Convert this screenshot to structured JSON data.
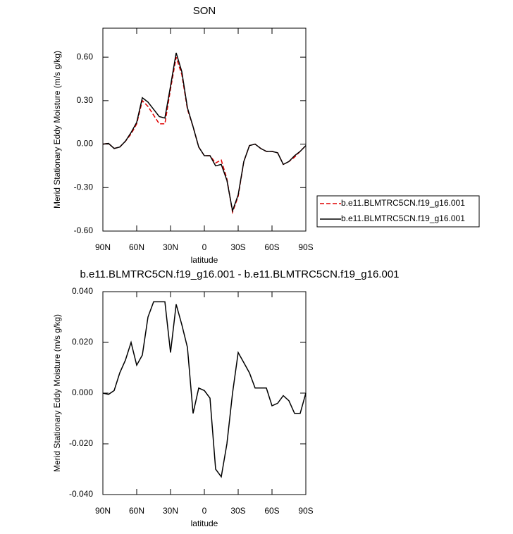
{
  "chart_data": [
    {
      "type": "line",
      "title": "SON",
      "x_label": "latitude",
      "y_label": "Merid Stationary Eddy Moisture (m/s g/kg)",
      "x": [
        90,
        85,
        80,
        75,
        70,
        65,
        60,
        55,
        50,
        45,
        40,
        35,
        30,
        25,
        20,
        15,
        10,
        5,
        0,
        -5,
        -10,
        -15,
        -20,
        -25,
        -30,
        -35,
        -40,
        -45,
        -50,
        -55,
        -60,
        -65,
        -70,
        -75,
        -80,
        -85,
        -90
      ],
      "series": [
        {
          "name": "b.e11.BLMTRC5CN.f19_g16.001",
          "color": "#e00000",
          "dash": true,
          "values": [
            0.0,
            0.005,
            -0.03,
            -0.02,
            0.02,
            0.07,
            0.14,
            0.3,
            0.26,
            0.2,
            0.14,
            0.14,
            0.38,
            0.6,
            0.48,
            0.24,
            0.12,
            -0.02,
            -0.08,
            -0.08,
            -0.13,
            -0.11,
            -0.24,
            -0.47,
            -0.36,
            -0.12,
            -0.01,
            0.0,
            -0.03,
            -0.05,
            -0.05,
            -0.06,
            -0.14,
            -0.12,
            -0.09,
            -0.05,
            -0.01
          ]
        },
        {
          "name": "b.e11.BLMTRC5CN.f19_g16.001",
          "color": "#000000",
          "dash": false,
          "values": [
            0.0,
            0.005,
            -0.03,
            -0.02,
            0.02,
            0.08,
            0.15,
            0.32,
            0.29,
            0.24,
            0.19,
            0.18,
            0.4,
            0.63,
            0.5,
            0.25,
            0.12,
            -0.02,
            -0.08,
            -0.08,
            -0.15,
            -0.14,
            -0.25,
            -0.46,
            -0.35,
            -0.12,
            -0.01,
            0.0,
            -0.03,
            -0.05,
            -0.05,
            -0.06,
            -0.14,
            -0.12,
            -0.08,
            -0.05,
            -0.01
          ]
        }
      ],
      "xlim": [
        90,
        -90
      ],
      "xticks": [
        {
          "value": 90,
          "label": "90N"
        },
        {
          "value": 60,
          "label": "60N"
        },
        {
          "value": 30,
          "label": "30N"
        },
        0,
        {
          "value": -30,
          "label": "30S"
        },
        {
          "value": -60,
          "label": "60S"
        },
        {
          "value": -90,
          "label": "90S"
        }
      ],
      "ylim": [
        -0.6,
        0.8
      ],
      "yticks": [
        {
          "value": -0.6,
          "label": "-0.60"
        },
        {
          "value": -0.3,
          "label": "-0.30"
        },
        {
          "value": 0,
          "label": "0.00"
        },
        {
          "value": 0.3,
          "label": "0.30"
        },
        {
          "value": 0.6,
          "label": "0.60"
        }
      ],
      "legend": "right"
    },
    {
      "type": "line",
      "title": "b.e11.BLMTRC5CN.f19_g16.001 - b.e11.BLMTRC5CN.f19_g16.001",
      "x_label": "latitude",
      "y_label": "Merid Stationary Eddy Moisture (m/s g/kg)",
      "x": [
        90,
        85,
        80,
        75,
        70,
        65,
        60,
        55,
        50,
        45,
        40,
        35,
        30,
        25,
        20,
        15,
        10,
        5,
        0,
        -5,
        -10,
        -15,
        -20,
        -25,
        -30,
        -35,
        -40,
        -45,
        -50,
        -55,
        -60,
        -65,
        -70,
        -75,
        -80,
        -85,
        -90
      ],
      "values": [
        0.0,
        -0.0005,
        0.001,
        0.008,
        0.013,
        0.02,
        0.011,
        0.015,
        0.03,
        0.036,
        0.036,
        0.036,
        0.016,
        0.035,
        0.027,
        0.018,
        -0.008,
        0.002,
        0.001,
        -0.002,
        -0.03,
        -0.033,
        -0.02,
        0.0,
        0.016,
        0.012,
        0.008,
        0.002,
        0.002,
        0.002,
        -0.005,
        -0.004,
        -0.001,
        -0.003,
        -0.008,
        -0.008,
        0.0
      ],
      "color": "#000000",
      "xlim": [
        90,
        -90
      ],
      "xticks": [
        {
          "value": 90,
          "label": "90N"
        },
        {
          "value": 60,
          "label": "60N"
        },
        {
          "value": 30,
          "label": "30N"
        },
        0,
        {
          "value": -30,
          "label": "30S"
        },
        {
          "value": -60,
          "label": "60S"
        },
        {
          "value": -90,
          "label": "90S"
        }
      ],
      "ylim": [
        -0.04,
        0.04
      ],
      "yticks": [
        {
          "value": -0.04,
          "label": "-0.040"
        },
        {
          "value": -0.02,
          "label": "-0.020"
        },
        {
          "value": 0,
          "label": "0.000"
        },
        {
          "value": 0.02,
          "label": "0.020"
        },
        {
          "value": 0.04,
          "label": "0.040"
        }
      ]
    }
  ]
}
